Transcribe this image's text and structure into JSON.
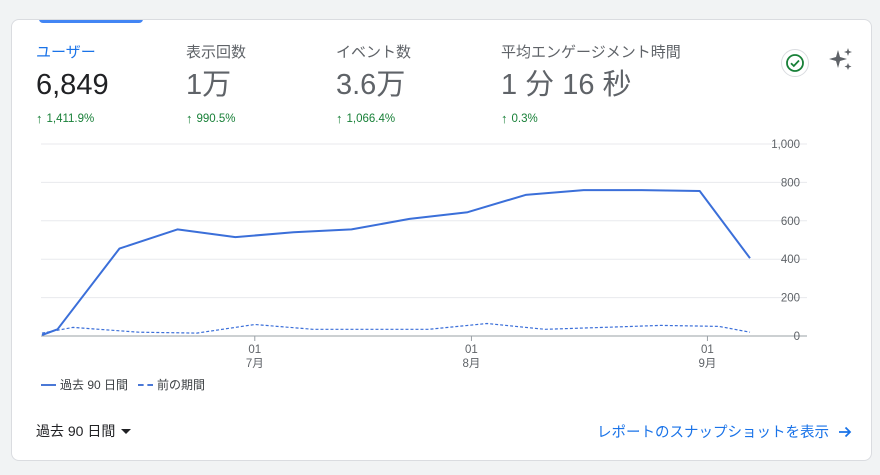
{
  "metrics": [
    {
      "label": "ユーザー",
      "value": "6,849",
      "change": "1,411.9%"
    },
    {
      "label": "表示回数",
      "value": "1万",
      "change": "990.5%"
    },
    {
      "label": "イベント数",
      "value": "3.6万",
      "change": "1,066.4%"
    },
    {
      "label": "平均エンゲージメント時間",
      "value": "1 分 16 秒",
      "change": "0.3%"
    }
  ],
  "chart_data": {
    "type": "line",
    "y_ticks": [
      "1,000",
      "800",
      "600",
      "400",
      "200",
      "0"
    ],
    "ylim": [
      0,
      1000
    ],
    "x_ticks": [
      {
        "day": "01",
        "month": "7月"
      },
      {
        "day": "01",
        "month": "8月"
      },
      {
        "day": "01",
        "month": "9月"
      }
    ],
    "series": [
      {
        "name": "過去 90 日間",
        "style": "solid",
        "points": [
          [
            0,
            5
          ],
          [
            4,
            35
          ],
          [
            20,
            455
          ],
          [
            35,
            555
          ],
          [
            50,
            515
          ],
          [
            65,
            540
          ],
          [
            80,
            555
          ],
          [
            95,
            610
          ],
          [
            110,
            645
          ],
          [
            125,
            735
          ],
          [
            140,
            760
          ],
          [
            155,
            760
          ],
          [
            170,
            755
          ],
          [
            183,
            405
          ]
        ]
      },
      {
        "name": "前の期間",
        "style": "dashed",
        "points": [
          [
            0,
            15
          ],
          [
            8,
            45
          ],
          [
            25,
            20
          ],
          [
            40,
            15
          ],
          [
            55,
            60
          ],
          [
            70,
            35
          ],
          [
            85,
            35
          ],
          [
            100,
            35
          ],
          [
            115,
            65
          ],
          [
            130,
            35
          ],
          [
            145,
            45
          ],
          [
            160,
            55
          ],
          [
            175,
            50
          ],
          [
            183,
            20
          ]
        ]
      }
    ],
    "x_tick_index": [
      55,
      111,
      172
    ],
    "x_total": 183,
    "grid": true,
    "legend": "bottom-left",
    "color": "#3b6fd9"
  },
  "legend": {
    "current": "過去 90 日間",
    "previous": "前の期間"
  },
  "footer": {
    "date_range": "過去 90 日間",
    "snapshot_link": "レポートのスナップショットを表示"
  },
  "colors": {
    "accent": "#1a73e8",
    "positive": "#188038",
    "line": "#3b6fd9"
  }
}
